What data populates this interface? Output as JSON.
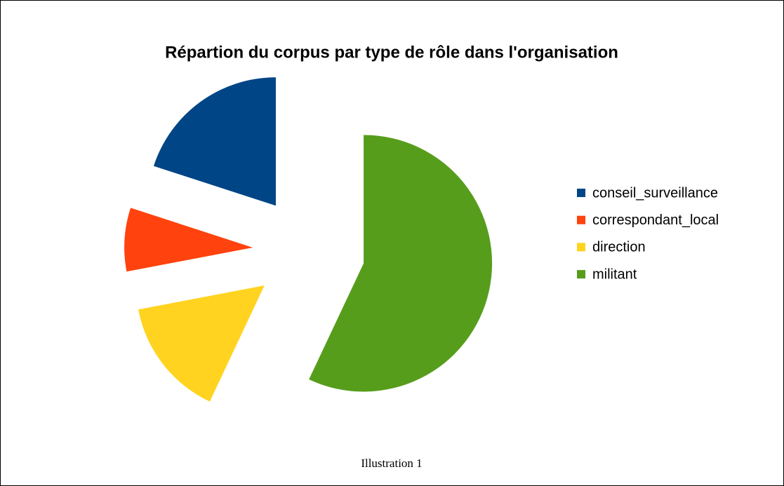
{
  "chart_data": {
    "type": "pie",
    "title": "Répartion du corpus par type de rôle dans l'organisation",
    "categories": [
      "conseil_surveillance",
      "correspondant_local",
      "direction",
      "militant"
    ],
    "values": [
      20,
      8,
      15,
      57
    ],
    "colors": [
      "#004586",
      "#ff420e",
      "#ffd320",
      "#579d1c"
    ],
    "exploded": true,
    "legend": "right",
    "caption": "Illustration 1"
  }
}
